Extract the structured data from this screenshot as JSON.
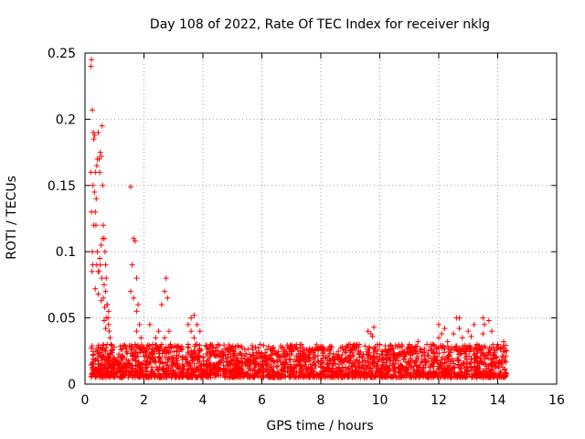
{
  "chart_data": {
    "type": "scatter",
    "title": "Day 108 of 2022, Rate Of TEC Index for receiver nklg",
    "xlabel": "GPS time / hours",
    "ylabel": "ROTI / TECUs",
    "xlim": [
      0,
      16
    ],
    "ylim": [
      0,
      0.25
    ],
    "x_ticks": [
      0,
      2,
      4,
      6,
      8,
      10,
      12,
      14,
      16
    ],
    "y_ticks": [
      0,
      0.05,
      0.1,
      0.15,
      0.2,
      0.25
    ],
    "x_tick_labels": [
      "0",
      "2",
      "4",
      "6",
      "8",
      "10",
      "12",
      "14",
      "16"
    ],
    "y_tick_labels": [
      "0",
      "0.05",
      "0.1",
      "0.15",
      "0.2",
      "0.25"
    ],
    "grid": true,
    "marker": "+",
    "series": [
      {
        "name": "ROTI",
        "color": "#ff0000",
        "x": [
          0.2,
          0.22,
          0.25,
          0.28,
          0.3,
          0.33,
          0.35,
          0.38,
          0.4,
          0.42,
          0.45,
          0.48,
          0.5,
          0.52,
          0.55,
          0.58,
          0.6,
          0.62,
          0.65,
          0.68,
          0.7,
          0.72,
          0.75,
          0.78,
          0.8,
          0.82,
          0.85,
          0.88,
          0.9,
          0.95,
          1.0,
          1.05,
          1.1,
          1.15,
          1.2,
          1.25,
          1.3,
          1.4,
          1.5,
          1.55,
          1.6,
          1.65,
          1.7,
          1.75,
          1.8,
          1.85,
          1.9,
          2.0,
          2.1,
          2.2,
          2.3,
          2.4,
          2.5,
          2.6,
          2.7,
          2.75,
          2.8,
          2.85,
          2.9,
          3.0,
          3.1,
          3.2,
          3.3,
          3.4,
          3.5,
          3.6,
          3.7,
          3.8,
          3.9,
          4.0,
          4.2,
          4.5,
          4.8,
          5.0,
          5.3,
          5.6,
          6.0,
          6.3,
          6.6,
          7.0,
          7.3,
          7.6,
          8.0,
          8.3,
          8.6,
          9.0,
          9.3,
          9.6,
          9.8,
          10.0,
          10.3,
          10.6,
          11.0,
          11.3,
          11.6,
          12.0,
          12.2,
          12.5,
          12.7,
          13.0,
          13.2,
          13.5,
          13.7,
          14.0,
          14.2,
          0.25,
          0.3,
          0.35,
          0.4,
          0.45,
          0.5,
          0.55,
          0.6,
          0.65,
          0.7,
          0.75,
          0.8,
          0.2,
          0.22,
          0.27,
          0.32,
          0.37,
          0.42,
          0.47,
          0.52,
          0.57,
          0.62,
          0.67,
          0.72,
          0.3,
          0.35,
          0.4,
          0.45,
          0.5,
          0.55,
          0.6,
          0.65,
          0.7,
          0.75,
          0.8,
          0.85,
          0.9,
          1.0,
          1.1,
          1.2,
          1.7,
          1.75,
          1.8,
          2.2,
          2.5,
          2.7,
          2.75,
          3.5,
          3.6,
          3.7,
          3.8,
          3.9,
          9.7,
          9.75,
          12.0,
          12.1,
          12.6,
          12.7,
          13.5,
          13.55,
          0.24,
          0.26,
          0.35,
          0.45,
          0.55,
          0.65,
          0.7,
          1.55,
          1.65,
          1.75,
          2.2,
          2.3,
          2.6,
          2.8,
          3.0,
          3.3,
          3.6,
          3.75,
          3.85,
          4.1,
          4.4,
          4.7,
          5.1,
          5.5,
          5.9,
          6.2,
          6.5,
          6.8,
          7.1,
          7.4,
          7.8,
          8.1,
          8.4,
          8.8,
          9.1,
          9.4,
          9.9,
          10.2,
          10.5,
          10.8,
          11.1,
          11.4,
          11.8,
          12.3,
          12.8,
          13.1,
          13.3,
          13.8,
          14.1,
          14.3
        ],
        "y": [
          0.24,
          0.245,
          0.207,
          0.19,
          0.185,
          0.188,
          0.16,
          0.14,
          0.165,
          0.17,
          0.19,
          0.17,
          0.16,
          0.175,
          0.172,
          0.195,
          0.15,
          0.12,
          0.11,
          0.1,
          0.09,
          0.08,
          0.06,
          0.05,
          0.045,
          0.04,
          0.035,
          0.03,
          0.025,
          0.02,
          0.02,
          0.018,
          0.015,
          0.012,
          0.015,
          0.012,
          0.01,
          0.012,
          0.015,
          0.149,
          0.09,
          0.11,
          0.108,
          0.08,
          0.06,
          0.045,
          0.035,
          0.025,
          0.02,
          0.045,
          0.03,
          0.035,
          0.025,
          0.06,
          0.07,
          0.08,
          0.065,
          0.04,
          0.03,
          0.02,
          0.015,
          0.012,
          0.015,
          0.02,
          0.045,
          0.05,
          0.052,
          0.045,
          0.04,
          0.02,
          0.015,
          0.012,
          0.01,
          0.012,
          0.01,
          0.012,
          0.015,
          0.018,
          0.02,
          0.022,
          0.025,
          0.02,
          0.015,
          0.018,
          0.02,
          0.025,
          0.03,
          0.04,
          0.043,
          0.03,
          0.025,
          0.028,
          0.03,
          0.032,
          0.03,
          0.035,
          0.042,
          0.038,
          0.05,
          0.04,
          0.045,
          0.038,
          0.048,
          0.03,
          0.032,
          0.1,
          0.12,
          0.13,
          0.09,
          0.085,
          0.095,
          0.105,
          0.11,
          0.075,
          0.07,
          0.06,
          0.055,
          0.16,
          0.13,
          0.15,
          0.145,
          0.12,
          0.1,
          0.085,
          0.09,
          0.08,
          0.065,
          0.058,
          0.05,
          0.01,
          0.012,
          0.008,
          0.015,
          0.01,
          0.012,
          0.018,
          0.02,
          0.025,
          0.03,
          0.012,
          0.015,
          0.01,
          0.012,
          0.009,
          0.01,
          0.03,
          0.04,
          0.028,
          0.02,
          0.04,
          0.035,
          0.028,
          0.03,
          0.04,
          0.035,
          0.03,
          0.025,
          0.038,
          0.036,
          0.045,
          0.038,
          0.05,
          0.042,
          0.05,
          0.045,
          0.085,
          0.09,
          0.072,
          0.068,
          0.063,
          0.048,
          0.042,
          0.07,
          0.065,
          0.055,
          0.022,
          0.018,
          0.03,
          0.025,
          0.018,
          0.02,
          0.025,
          0.03,
          0.025,
          0.01,
          0.008,
          0.012,
          0.009,
          0.008,
          0.01,
          0.011,
          0.013,
          0.015,
          0.017,
          0.018,
          0.014,
          0.012,
          0.015,
          0.018,
          0.022,
          0.02,
          0.02,
          0.025,
          0.022,
          0.024,
          0.028,
          0.026,
          0.03,
          0.032,
          0.035,
          0.036,
          0.03,
          0.04,
          0.028,
          0.025
        ],
        "baseline_band": {
          "description": "dense band of points",
          "x_range": [
            0.2,
            14.3
          ],
          "y_range": [
            0.005,
            0.03
          ]
        }
      }
    ]
  }
}
